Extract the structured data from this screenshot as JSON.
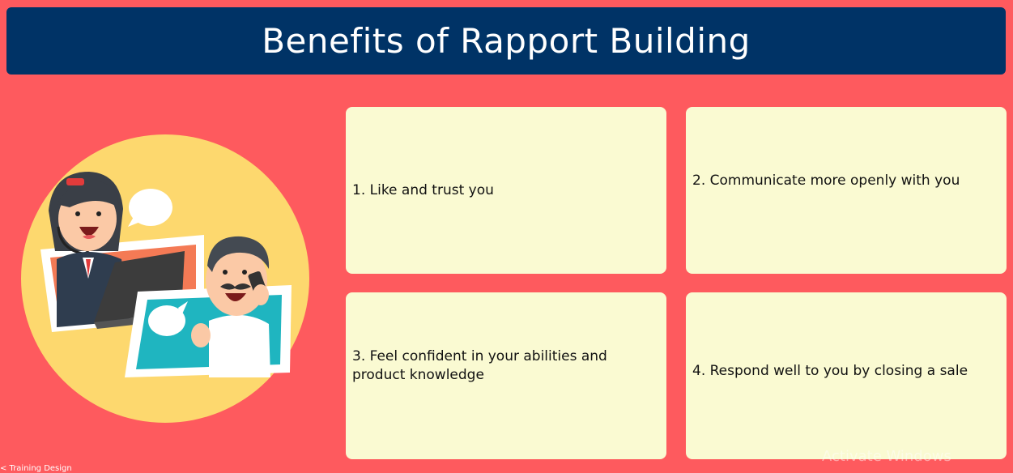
{
  "title": "Benefits of Rapport Building",
  "cards": [
    {
      "text": "1. Like and trust you"
    },
    {
      "text": "2. Communicate more openly with you"
    },
    {
      "text": "3. Feel confident in your abilities and product knowledge"
    },
    {
      "text": "4. Respond well to you by closing a sale"
    }
  ],
  "footer": "< Training Design",
  "watermark": "Activate Windows",
  "colors": {
    "background": "#fe5a5e",
    "title_bar": "#003366",
    "card": "#fafad2",
    "circle": "#fdd86e"
  },
  "illustration": {
    "icons": [
      "woman-headset-icon",
      "man-phone-icon",
      "speech-bubble-icon"
    ]
  }
}
